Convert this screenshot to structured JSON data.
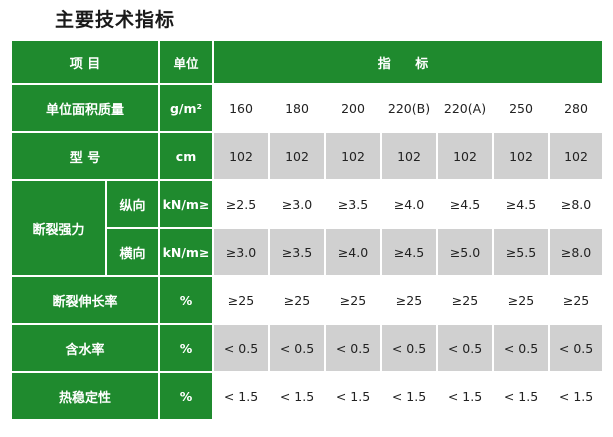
{
  "title": "主要技术指标",
  "header": {
    "item": "项  目",
    "unit": "单位",
    "index": "指  标"
  },
  "rows": {
    "mass": {
      "label": "单位面积质量",
      "unit": "g/m²",
      "values": [
        "160",
        "180",
        "200",
        "220(B)",
        "220(A)",
        "250",
        "280"
      ]
    },
    "model": {
      "label": "型  号",
      "unit": "cm",
      "values": [
        "102",
        "102",
        "102",
        "102",
        "102",
        "102",
        "102"
      ]
    },
    "strength": {
      "label": "断裂强力",
      "longitudinal": {
        "label": "纵向",
        "unit": "kN/m≥",
        "values": [
          "≥2.5",
          "≥3.0",
          "≥3.5",
          "≥4.0",
          "≥4.5",
          "≥4.5",
          "≥8.0"
        ]
      },
      "transverse": {
        "label": "横向",
        "unit": "kN/m≥",
        "values": [
          "≥3.0",
          "≥3.5",
          "≥4.0",
          "≥4.5",
          "≥5.0",
          "≥5.5",
          "≥8.0"
        ]
      }
    },
    "elongation": {
      "label": "断裂伸长率",
      "unit": "%",
      "values": [
        "≥25",
        "≥25",
        "≥25",
        "≥25",
        "≥25",
        "≥25",
        "≥25"
      ]
    },
    "moisture": {
      "label": "含水率",
      "unit": "%",
      "values": [
        "< 0.5",
        "< 0.5",
        "< 0.5",
        "< 0.5",
        "< 0.5",
        "< 0.5",
        "< 0.5"
      ]
    },
    "thermal": {
      "label": "热稳定性",
      "unit": "%",
      "values": [
        "< 1.5",
        "< 1.5",
        "< 1.5",
        "< 1.5",
        "< 1.5",
        "< 1.5",
        "< 1.5"
      ]
    }
  }
}
